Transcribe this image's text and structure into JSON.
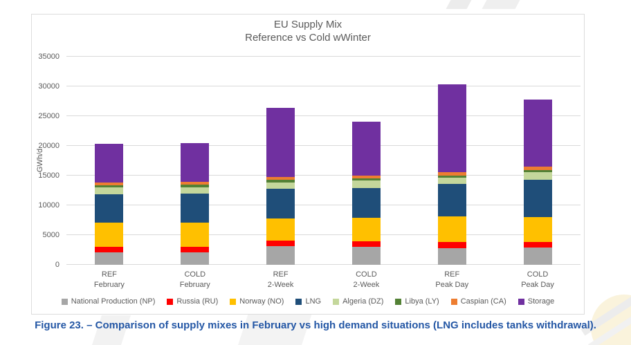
{
  "caption": "Figure 23. – Comparison of supply mixes in February vs high demand situations (LNG includes tanks withdrawal).",
  "chart_data": {
    "type": "bar",
    "stacked": true,
    "title": "EU Supply Mix",
    "subtitle": "Reference vs Cold wWinter",
    "ylabel": "GWh/d",
    "ylim": [
      0,
      35000
    ],
    "y_ticks": [
      0,
      5000,
      10000,
      15000,
      20000,
      25000,
      30000,
      35000
    ],
    "grid": true,
    "legend_position": "bottom",
    "categories": [
      {
        "line1": "REF",
        "line2": "February"
      },
      {
        "line1": "COLD",
        "line2": "February"
      },
      {
        "line1": "REF",
        "line2": "2-Week"
      },
      {
        "line1": "COLD",
        "line2": "2-Week"
      },
      {
        "line1": "REF",
        "line2": "Peak Day"
      },
      {
        "line1": "COLD",
        "line2": "Peak Day"
      }
    ],
    "series": [
      {
        "name": "National Production (NP)",
        "color": "#A6A6A6",
        "values": [
          2100,
          2100,
          3100,
          3000,
          2800,
          2900
        ]
      },
      {
        "name": "Russia (RU)",
        "color": "#FF0000",
        "values": [
          900,
          900,
          950,
          950,
          1000,
          950
        ]
      },
      {
        "name": "Norway (NO)",
        "color": "#FFC000",
        "values": [
          4150,
          4150,
          3800,
          4000,
          4400,
          4200
        ]
      },
      {
        "name": "LNG",
        "color": "#1F4E79",
        "values": [
          4750,
          4800,
          4950,
          4950,
          5400,
          6250
        ]
      },
      {
        "name": "Algeria (DZ)",
        "color": "#C4D79B",
        "values": [
          1100,
          1100,
          1100,
          1300,
          1000,
          1250
        ]
      },
      {
        "name": "Libya (LY)",
        "color": "#538135",
        "values": [
          400,
          400,
          400,
          300,
          400,
          400
        ]
      },
      {
        "name": "Caspian (CA)",
        "color": "#ED7D31",
        "values": [
          500,
          500,
          450,
          550,
          550,
          550
        ]
      },
      {
        "name": "Storage",
        "color": "#7030A0",
        "values": [
          6500,
          6550,
          11650,
          9050,
          14800,
          11250
        ]
      }
    ]
  },
  "colors": {
    "grid": "#D9D9D9",
    "axis_text": "#595959",
    "caption_text": "#2457A5"
  }
}
